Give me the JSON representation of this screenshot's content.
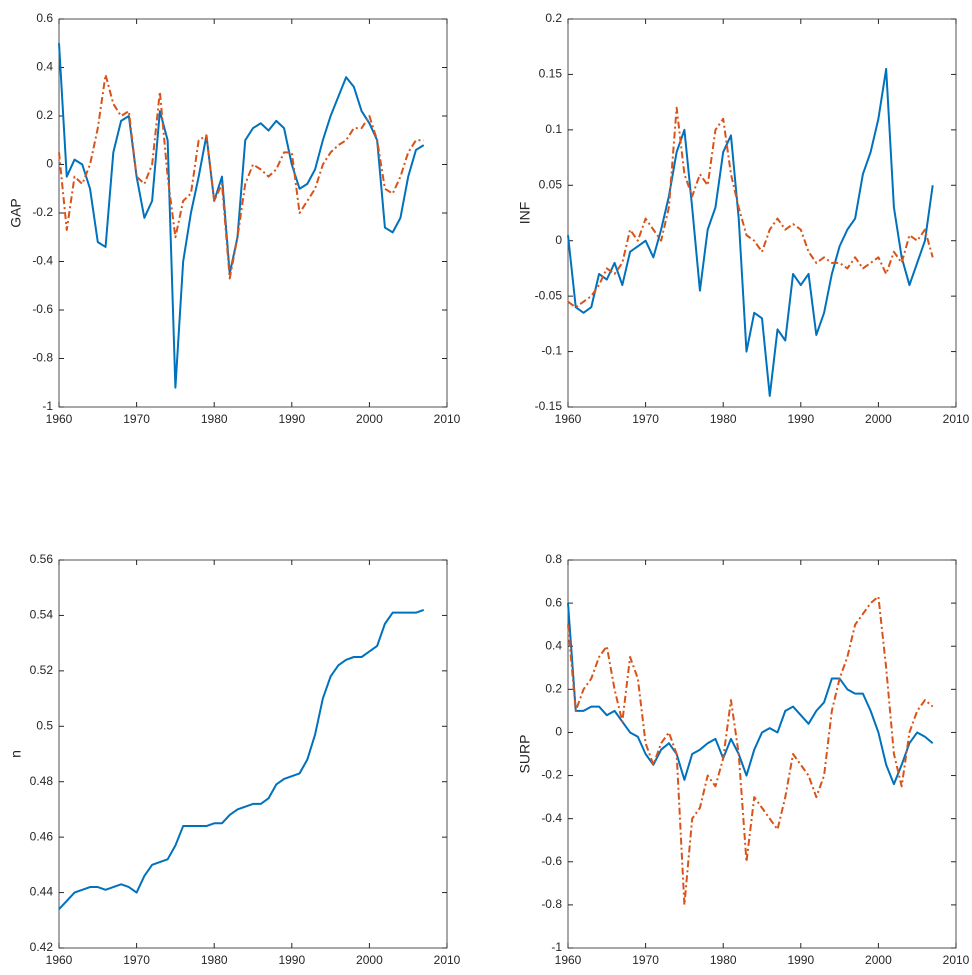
{
  "chart_data": [
    {
      "type": "line",
      "ylabel": "GAP",
      "x": [
        1960,
        1961,
        1962,
        1963,
        1964,
        1965,
        1966,
        1967,
        1968,
        1969,
        1970,
        1971,
        1972,
        1973,
        1974,
        1975,
        1976,
        1977,
        1978,
        1979,
        1980,
        1981,
        1982,
        1983,
        1984,
        1985,
        1986,
        1987,
        1988,
        1989,
        1990,
        1991,
        1992,
        1993,
        1994,
        1995,
        1996,
        1997,
        1998,
        1999,
        2000,
        2001,
        2002,
        2003,
        2004,
        2005,
        2006,
        2007
      ],
      "series": [
        {
          "color": "#0072bd",
          "linestyle": "solid",
          "values": [
            0.5,
            -0.05,
            0.02,
            0.0,
            -0.1,
            -0.32,
            -0.34,
            0.05,
            0.18,
            0.2,
            -0.05,
            -0.22,
            -0.15,
            0.22,
            0.1,
            -0.92,
            -0.4,
            -0.2,
            -0.05,
            0.12,
            -0.15,
            -0.05,
            -0.45,
            -0.3,
            0.1,
            0.15,
            0.17,
            0.14,
            0.18,
            0.15,
            0.0,
            -0.1,
            -0.08,
            -0.02,
            0.1,
            0.2,
            0.28,
            0.36,
            0.32,
            0.22,
            0.17,
            0.1,
            -0.26,
            -0.28,
            -0.22,
            -0.05,
            0.06,
            0.08
          ]
        },
        {
          "color": "#d95319",
          "linestyle": "dashdot",
          "values": [
            0.05,
            -0.27,
            -0.05,
            -0.08,
            0.0,
            0.15,
            0.37,
            0.25,
            0.2,
            0.22,
            -0.05,
            -0.08,
            0.0,
            0.3,
            -0.05,
            -0.3,
            -0.15,
            -0.12,
            0.1,
            0.12,
            -0.15,
            -0.08,
            -0.47,
            -0.3,
            -0.08,
            0.0,
            -0.02,
            -0.05,
            -0.02,
            0.05,
            0.05,
            -0.2,
            -0.15,
            -0.1,
            0.0,
            0.05,
            0.08,
            0.1,
            0.15,
            0.15,
            0.2,
            0.1,
            -0.1,
            -0.12,
            -0.05,
            0.05,
            0.1,
            0.1
          ]
        }
      ],
      "xlim": [
        1960,
        2010
      ],
      "xticks": [
        1960,
        1970,
        1980,
        1990,
        2000,
        2010
      ],
      "ylim": [
        -1,
        0.6
      ],
      "yticks": [
        -1,
        -0.8,
        -0.6,
        -0.4,
        -0.2,
        0,
        0.2,
        0.4,
        0.6
      ],
      "grid": false
    },
    {
      "type": "line",
      "ylabel": "INF",
      "x": [
        1960,
        1961,
        1962,
        1963,
        1964,
        1965,
        1966,
        1967,
        1968,
        1969,
        1970,
        1971,
        1972,
        1973,
        1974,
        1975,
        1976,
        1977,
        1978,
        1979,
        1980,
        1981,
        1982,
        1983,
        1984,
        1985,
        1986,
        1987,
        1988,
        1989,
        1990,
        1991,
        1992,
        1993,
        1994,
        1995,
        1996,
        1997,
        1998,
        1999,
        2000,
        2001,
        2002,
        2003,
        2004,
        2005,
        2006,
        2007
      ],
      "series": [
        {
          "color": "#0072bd",
          "linestyle": "solid",
          "values": [
            0.005,
            -0.06,
            -0.065,
            -0.06,
            -0.03,
            -0.035,
            -0.02,
            -0.04,
            -0.01,
            -0.005,
            0.0,
            -0.015,
            0.01,
            0.04,
            0.08,
            0.1,
            0.03,
            -0.045,
            0.01,
            0.03,
            0.08,
            0.095,
            0.02,
            -0.1,
            -0.065,
            -0.07,
            -0.14,
            -0.08,
            -0.09,
            -0.03,
            -0.04,
            -0.03,
            -0.085,
            -0.065,
            -0.03,
            -0.005,
            0.01,
            0.02,
            0.06,
            0.08,
            0.11,
            0.155,
            0.03,
            -0.015,
            -0.04,
            -0.02,
            0.0,
            0.05
          ]
        },
        {
          "color": "#d95319",
          "linestyle": "dashdot",
          "values": [
            -0.055,
            -0.06,
            -0.055,
            -0.05,
            -0.04,
            -0.025,
            -0.03,
            -0.02,
            0.01,
            0.0,
            0.02,
            0.01,
            0.0,
            0.03,
            0.12,
            0.06,
            0.04,
            0.06,
            0.05,
            0.1,
            0.11,
            0.06,
            0.03,
            0.005,
            0.0,
            -0.01,
            0.01,
            0.02,
            0.01,
            0.015,
            0.01,
            -0.01,
            -0.02,
            -0.015,
            -0.02,
            -0.02,
            -0.025,
            -0.015,
            -0.025,
            -0.02,
            -0.015,
            -0.03,
            -0.01,
            -0.02,
            0.005,
            0.0,
            0.01,
            -0.015
          ]
        }
      ],
      "xlim": [
        1960,
        2010
      ],
      "xticks": [
        1960,
        1970,
        1980,
        1990,
        2000,
        2010
      ],
      "ylim": [
        -0.15,
        0.2
      ],
      "yticks": [
        -0.15,
        -0.1,
        -0.05,
        0,
        0.05,
        0.1,
        0.15,
        0.2
      ],
      "grid": false
    },
    {
      "type": "line",
      "ylabel": "n",
      "x": [
        1960,
        1961,
        1962,
        1963,
        1964,
        1965,
        1966,
        1967,
        1968,
        1969,
        1970,
        1971,
        1972,
        1973,
        1974,
        1975,
        1976,
        1977,
        1978,
        1979,
        1980,
        1981,
        1982,
        1983,
        1984,
        1985,
        1986,
        1987,
        1988,
        1989,
        1990,
        1991,
        1992,
        1993,
        1994,
        1995,
        1996,
        1997,
        1998,
        1999,
        2000,
        2001,
        2002,
        2003,
        2004,
        2005,
        2006,
        2007
      ],
      "series": [
        {
          "color": "#0072bd",
          "linestyle": "solid",
          "values": [
            0.434,
            0.437,
            0.44,
            0.441,
            0.442,
            0.442,
            0.441,
            0.442,
            0.443,
            0.442,
            0.44,
            0.446,
            0.45,
            0.451,
            0.452,
            0.457,
            0.464,
            0.464,
            0.464,
            0.464,
            0.465,
            0.465,
            0.468,
            0.47,
            0.471,
            0.472,
            0.472,
            0.474,
            0.479,
            0.481,
            0.482,
            0.483,
            0.488,
            0.497,
            0.51,
            0.518,
            0.522,
            0.524,
            0.525,
            0.525,
            0.527,
            0.529,
            0.537,
            0.541,
            0.541,
            0.541,
            0.541,
            0.542
          ]
        }
      ],
      "xlim": [
        1960,
        2010
      ],
      "xticks": [
        1960,
        1970,
        1980,
        1990,
        2000,
        2010
      ],
      "ylim": [
        0.42,
        0.56
      ],
      "yticks": [
        0.42,
        0.44,
        0.46,
        0.48,
        0.5,
        0.52,
        0.54,
        0.56
      ],
      "grid": false
    },
    {
      "type": "line",
      "ylabel": "SURP",
      "x": [
        1960,
        1961,
        1962,
        1963,
        1964,
        1965,
        1966,
        1967,
        1968,
        1969,
        1970,
        1971,
        1972,
        1973,
        1974,
        1975,
        1976,
        1977,
        1978,
        1979,
        1980,
        1981,
        1982,
        1983,
        1984,
        1985,
        1986,
        1987,
        1988,
        1989,
        1990,
        1991,
        1992,
        1993,
        1994,
        1995,
        1996,
        1997,
        1998,
        1999,
        2000,
        2001,
        2002,
        2003,
        2004,
        2005,
        2006,
        2007
      ],
      "series": [
        {
          "color": "#0072bd",
          "linestyle": "solid",
          "values": [
            0.6,
            0.1,
            0.1,
            0.12,
            0.12,
            0.08,
            0.1,
            0.05,
            0.0,
            -0.02,
            -0.1,
            -0.15,
            -0.08,
            -0.05,
            -0.1,
            -0.22,
            -0.1,
            -0.08,
            -0.05,
            -0.03,
            -0.12,
            -0.03,
            -0.1,
            -0.2,
            -0.08,
            0.0,
            0.02,
            0.0,
            0.1,
            0.12,
            0.08,
            0.04,
            0.1,
            0.14,
            0.25,
            0.25,
            0.2,
            0.18,
            0.18,
            0.1,
            0.0,
            -0.15,
            -0.24,
            -0.15,
            -0.05,
            0.0,
            -0.02,
            -0.05
          ]
        },
        {
          "color": "#d95319",
          "linestyle": "dashdot",
          "values": [
            0.5,
            0.1,
            0.2,
            0.25,
            0.35,
            0.4,
            0.2,
            0.05,
            0.35,
            0.25,
            -0.05,
            -0.15,
            -0.05,
            0.0,
            -0.1,
            -0.8,
            -0.4,
            -0.35,
            -0.2,
            -0.25,
            -0.12,
            0.15,
            -0.1,
            -0.6,
            -0.3,
            -0.35,
            -0.4,
            -0.45,
            -0.3,
            -0.1,
            -0.15,
            -0.2,
            -0.3,
            -0.2,
            0.1,
            0.25,
            0.35,
            0.5,
            0.55,
            0.6,
            0.63,
            0.3,
            -0.1,
            -0.25,
            0.0,
            0.1,
            0.15,
            0.12
          ]
        }
      ],
      "xlim": [
        1960,
        2010
      ],
      "xticks": [
        1960,
        1970,
        1980,
        1990,
        2000,
        2010
      ],
      "ylim": [
        -1,
        0.8
      ],
      "yticks": [
        -1,
        -0.8,
        -0.6,
        -0.4,
        -0.2,
        0,
        0.2,
        0.4,
        0.6,
        0.8
      ],
      "grid": false
    }
  ]
}
